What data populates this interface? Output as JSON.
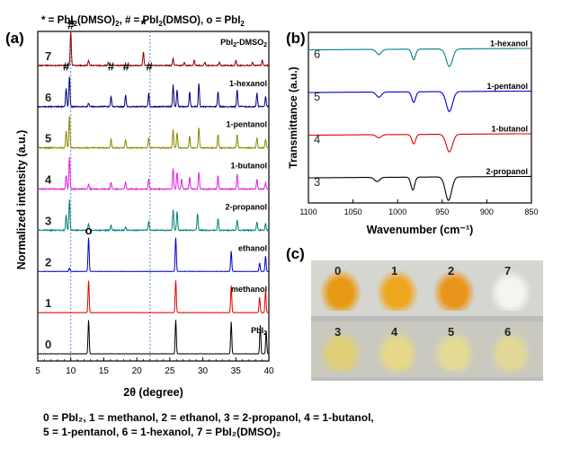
{
  "header_legend": {
    "part1": "* = PbI",
    "part2": "(DMSO)",
    "part3": ",  # = PbI",
    "part4": "(DMSO),  o = PbI",
    "sub2": "2"
  },
  "panel_labels": {
    "a": "(a)",
    "b": "(b)",
    "c": "(c)"
  },
  "chart_data": [
    {
      "type": "line",
      "panel": "(a)",
      "xlabel": "2θ (degree)",
      "ylabel": "Normalized intensity (a.u.)",
      "xlim": [
        5,
        40
      ],
      "xticks": [
        "5",
        "10",
        "15",
        "20",
        "25",
        "30",
        "35",
        "40"
      ],
      "reference_lines_x": [
        10,
        22
      ],
      "series": [
        {
          "index": "0",
          "label": "PbI",
          "label_sub": "2",
          "color": "#000000",
          "peaks": [
            [
              12.7,
              1.0
            ],
            [
              25.9,
              1.0
            ],
            [
              34.3,
              0.95
            ],
            [
              38.7,
              0.85
            ],
            [
              39.6,
              0.65
            ]
          ]
        },
        {
          "index": "1",
          "label": "methanol",
          "color": "#e00000",
          "peaks": [
            [
              12.7,
              0.95
            ],
            [
              25.9,
              0.95
            ],
            [
              34.3,
              0.8
            ],
            [
              38.6,
              0.45
            ],
            [
              39.5,
              0.65
            ]
          ]
        },
        {
          "index": "2",
          "label": "ethanol",
          "color": "#0000cc",
          "peaks": [
            [
              9.8,
              0.1
            ],
            [
              12.7,
              1.0
            ],
            [
              25.9,
              1.0
            ],
            [
              34.3,
              0.6
            ],
            [
              38.6,
              0.25
            ],
            [
              39.5,
              0.45
            ]
          ]
        },
        {
          "index": "3",
          "label": "2-propanol",
          "color": "#008080",
          "peaks": [
            [
              9.3,
              0.45
            ],
            [
              9.8,
              0.9
            ],
            [
              12.7,
              0.2
            ],
            [
              16.1,
              0.15
            ],
            [
              18.3,
              0.1
            ],
            [
              21.8,
              0.25
            ],
            [
              25.5,
              0.6
            ],
            [
              26.1,
              0.55
            ],
            [
              29.2,
              0.5
            ],
            [
              32.3,
              0.35
            ],
            [
              35.2,
              0.3
            ],
            [
              38.2,
              0.25
            ],
            [
              39.5,
              0.2
            ]
          ]
        },
        {
          "index": "4",
          "label": "1-butanol",
          "color": "#e020e0",
          "peaks": [
            [
              9.3,
              0.4
            ],
            [
              9.8,
              0.95
            ],
            [
              12.7,
              0.15
            ],
            [
              16.1,
              0.2
            ],
            [
              18.3,
              0.2
            ],
            [
              21.8,
              0.3
            ],
            [
              25.5,
              0.6
            ],
            [
              26.1,
              0.5
            ],
            [
              26.8,
              0.3
            ],
            [
              28.0,
              0.35
            ],
            [
              29.4,
              0.5
            ],
            [
              32.3,
              0.4
            ],
            [
              35.2,
              0.45
            ],
            [
              38.2,
              0.3
            ],
            [
              39.5,
              0.2
            ]
          ]
        },
        {
          "index": "5",
          "label": "1-pentanol",
          "color": "#8a8a00",
          "peaks": [
            [
              9.3,
              0.5
            ],
            [
              9.8,
              0.95
            ],
            [
              16.1,
              0.25
            ],
            [
              18.3,
              0.25
            ],
            [
              21.8,
              0.3
            ],
            [
              25.5,
              0.55
            ],
            [
              26.1,
              0.45
            ],
            [
              28.0,
              0.35
            ],
            [
              29.4,
              0.6
            ],
            [
              32.3,
              0.4
            ],
            [
              35.2,
              0.4
            ],
            [
              38.2,
              0.3
            ],
            [
              39.5,
              0.25
            ]
          ]
        },
        {
          "index": "6",
          "label": "1-hexanol",
          "color": "#000080",
          "peaks": [
            [
              9.3,
              0.55
            ],
            [
              9.8,
              0.9
            ],
            [
              12.7,
              0.1
            ],
            [
              16.1,
              0.3
            ],
            [
              18.3,
              0.35
            ],
            [
              21.8,
              0.4
            ],
            [
              25.5,
              0.65
            ],
            [
              26.1,
              0.5
            ],
            [
              28.0,
              0.45
            ],
            [
              29.4,
              0.7
            ],
            [
              32.3,
              0.45
            ],
            [
              35.2,
              0.5
            ],
            [
              38.2,
              0.4
            ],
            [
              39.5,
              0.3
            ]
          ]
        },
        {
          "index": "7",
          "label": "PbI",
          "label_sub": "2",
          "label_suffix": "-DMSO",
          "label_suffix_sub": "2",
          "color": "#8b0000",
          "peaks": [
            [
              10.0,
              1.0
            ],
            [
              12.7,
              0.15
            ],
            [
              15.7,
              0.1
            ],
            [
              21.0,
              0.4
            ],
            [
              25.5,
              0.2
            ],
            [
              27.2,
              0.1
            ],
            [
              28.7,
              0.15
            ],
            [
              30.3,
              0.1
            ],
            [
              32.5,
              0.1
            ],
            [
              35.0,
              0.15
            ],
            [
              37.5,
              0.1
            ],
            [
              39.0,
              0.15
            ]
          ]
        }
      ],
      "markers": [
        {
          "symbol": "*",
          "x": 10.2,
          "series": "7"
        },
        {
          "symbol": "*",
          "x": 21.0,
          "series": "7"
        },
        {
          "symbol": "#",
          "x": 9.3,
          "series": "6"
        },
        {
          "symbol": "#",
          "x": 10.0,
          "series": "7"
        },
        {
          "symbol": "#",
          "x": 16.1,
          "series": "6"
        },
        {
          "symbol": "#",
          "x": 18.4,
          "series": "6"
        },
        {
          "symbol": "#",
          "x": 21.9,
          "series": "6"
        },
        {
          "symbol": "o",
          "x": 12.7,
          "series": "2"
        }
      ]
    },
    {
      "type": "line",
      "panel": "(b)",
      "xlabel": "Wavenumber (cm⁻¹)",
      "ylabel": "Transmittance (a.u.)",
      "xlim": [
        1100,
        850
      ],
      "xticks": [
        "1100",
        "1050",
        "1000",
        "950",
        "900",
        "850"
      ],
      "series": [
        {
          "index": "3",
          "label": "2-propanol",
          "color": "#000000",
          "dips": [
            [
              1023,
              0.18,
              4
            ],
            [
              983,
              0.55,
              3
            ],
            [
              943,
              1.0,
              5
            ]
          ]
        },
        {
          "index": "4",
          "label": "1-butanol",
          "color": "#e00000",
          "dips": [
            [
              1021,
              0.13,
              4
            ],
            [
              982,
              0.4,
              3
            ],
            [
              942,
              0.75,
              5
            ]
          ]
        },
        {
          "index": "5",
          "label": "1-pentanol",
          "color": "#0000cc",
          "dips": [
            [
              1021,
              0.22,
              4
            ],
            [
              982,
              0.45,
              3
            ],
            [
              942,
              0.85,
              5
            ]
          ]
        },
        {
          "index": "6",
          "label": "1-hexanol",
          "color": "#008080",
          "dips": [
            [
              1021,
              0.22,
              4
            ],
            [
              982,
              0.45,
              3
            ],
            [
              942,
              0.75,
              5
            ]
          ]
        }
      ]
    }
  ],
  "photo_panel": {
    "samples_top": [
      {
        "id": "0",
        "color": "#e79a13"
      },
      {
        "id": "1",
        "color": "#efa61f"
      },
      {
        "id": "2",
        "color": "#e9951b"
      },
      {
        "id": "7",
        "color": "#f4f4f0"
      }
    ],
    "samples_bottom": [
      {
        "id": "3",
        "color": "#e0d07a"
      },
      {
        "id": "4",
        "color": "#e6d888"
      },
      {
        "id": "5",
        "color": "#e4da96"
      },
      {
        "id": "6",
        "color": "#e1d897"
      }
    ]
  },
  "caption": {
    "line1": "0 = PbI₂, 1 = methanol, 2 = ethanol, 3 = 2-propanol, 4 = 1-butanol,",
    "line2": "5 = 1-pentanol, 6 = 1-hexanol, 7 = PbI₂(DMSO)₂"
  }
}
